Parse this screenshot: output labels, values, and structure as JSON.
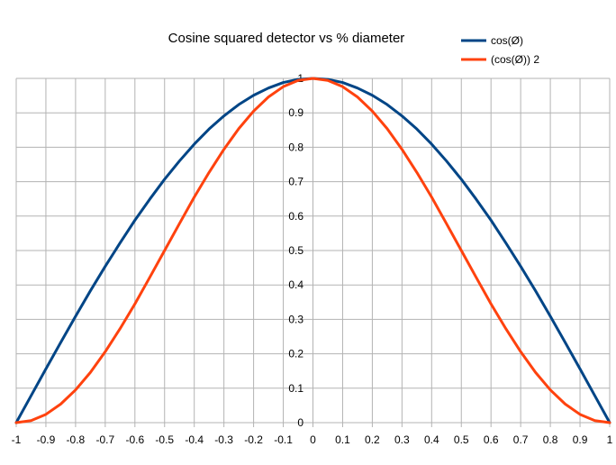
{
  "chart_data": {
    "type": "line",
    "title": "Cosine squared  detector vs % diameter",
    "xlabel": "",
    "ylabel": "",
    "xlim": [
      -1,
      1
    ],
    "ylim": [
      0,
      1
    ],
    "x_ticks": [
      "-1",
      "-0.9",
      "-0.8",
      "-0.7",
      "-0.6",
      "-0.5",
      "-0.4",
      "-0.3",
      "-0.2",
      "-0.1",
      "0",
      "0.1",
      "0.2",
      "0.3",
      "0.4",
      "0.5",
      "0.6",
      "0.7",
      "0.8",
      "0.9",
      "1"
    ],
    "y_ticks": [
      "0",
      "0.1",
      "0.2",
      "0.3",
      "0.4",
      "0.5",
      "0.6",
      "0.7",
      "0.8",
      "0.9",
      "1"
    ],
    "grid": true,
    "legend_position": "top-right",
    "x": [
      -1,
      -0.95,
      -0.9,
      -0.85,
      -0.8,
      -0.75,
      -0.7,
      -0.65,
      -0.6,
      -0.55,
      -0.5,
      -0.45,
      -0.4,
      -0.35,
      -0.3,
      -0.25,
      -0.2,
      -0.15,
      -0.1,
      -0.05,
      0,
      0.05,
      0.1,
      0.15,
      0.2,
      0.25,
      0.3,
      0.35,
      0.4,
      0.45,
      0.5,
      0.55,
      0.6,
      0.65,
      0.7,
      0.75,
      0.8,
      0.85,
      0.9,
      0.95,
      1
    ],
    "series": [
      {
        "name": "cos(Ø)",
        "color": "#004586",
        "values": [
          0,
          0.078,
          0.156,
          0.233,
          0.309,
          0.383,
          0.454,
          0.522,
          0.588,
          0.649,
          0.707,
          0.76,
          0.809,
          0.853,
          0.891,
          0.924,
          0.951,
          0.972,
          0.988,
          0.997,
          1,
          0.997,
          0.988,
          0.972,
          0.951,
          0.924,
          0.891,
          0.853,
          0.809,
          0.76,
          0.707,
          0.649,
          0.588,
          0.522,
          0.454,
          0.383,
          0.309,
          0.233,
          0.156,
          0.078,
          0
        ]
      },
      {
        "name": "(cos(Ø)) 2",
        "color": "#ff420e",
        "values": [
          0,
          0.006,
          0.024,
          0.054,
          0.095,
          0.146,
          0.206,
          0.273,
          0.345,
          0.422,
          0.5,
          0.578,
          0.655,
          0.727,
          0.794,
          0.854,
          0.905,
          0.946,
          0.976,
          0.994,
          1,
          0.994,
          0.976,
          0.946,
          0.905,
          0.854,
          0.794,
          0.727,
          0.655,
          0.578,
          0.5,
          0.422,
          0.345,
          0.273,
          0.206,
          0.146,
          0.095,
          0.054,
          0.024,
          0.006,
          0
        ]
      }
    ]
  }
}
